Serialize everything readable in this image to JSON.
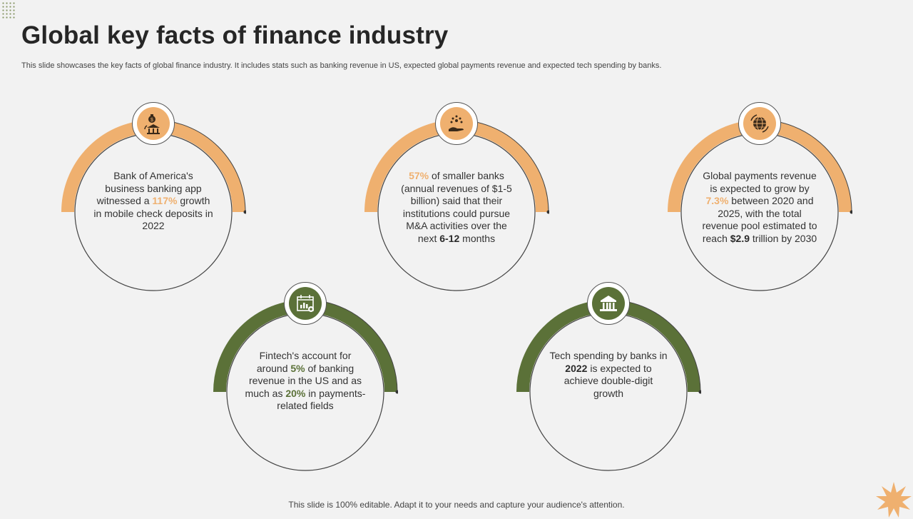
{
  "title": "Global key facts of finance industry",
  "subtitle": "This slide showcases the key facts of global finance industry. It includes stats such as banking revenue in US, expected global payments revenue and expected tech spending by banks.",
  "footer": "This slide is 100% editable. Adapt it to your needs and capture your audience's attention.",
  "colors": {
    "orange": "#efb06f",
    "green": "#5b7138",
    "dark": "#2b2b2b"
  },
  "cards": [
    {
      "icon": "money-bag-bank-icon",
      "segments": [
        {
          "t": "Bank of America's business banking app witnessed a "
        },
        {
          "t": "117%",
          "c": "orange"
        },
        {
          "t": " growth in mobile check deposits in 2022"
        }
      ]
    },
    {
      "icon": "coins-hand-icon",
      "segments": [
        {
          "t": "57%",
          "c": "orange"
        },
        {
          "t": " of smaller banks (annual revenues of $1-5 billion) said that their institutions could pursue M&A activities over the next "
        },
        {
          "t": "6-12",
          "c": "dark"
        },
        {
          "t": " months"
        }
      ]
    },
    {
      "icon": "globe-cycle-icon",
      "segments": [
        {
          "t": "Global payments revenue is expected to grow by "
        },
        {
          "t": "7.3%",
          "c": "orange"
        },
        {
          "t": " between 2020 and 2025, with the total revenue pool estimated to reach "
        },
        {
          "t": "$2.9",
          "c": "dark"
        },
        {
          "t": " trillion by 2030"
        }
      ]
    },
    {
      "icon": "calendar-chart-icon",
      "segments": [
        {
          "t": "Fintech's account for around "
        },
        {
          "t": "5%",
          "c": "green"
        },
        {
          "t": " of banking revenue in the US and as much as "
        },
        {
          "t": "20%",
          "c": "green"
        },
        {
          "t": " in payments-related fields"
        }
      ]
    },
    {
      "icon": "bank-building-icon",
      "segments": [
        {
          "t": "Tech spending by banks in "
        },
        {
          "t": "2022",
          "c": "dark"
        },
        {
          "t": " is expected to achieve double-digit growth"
        }
      ]
    }
  ]
}
